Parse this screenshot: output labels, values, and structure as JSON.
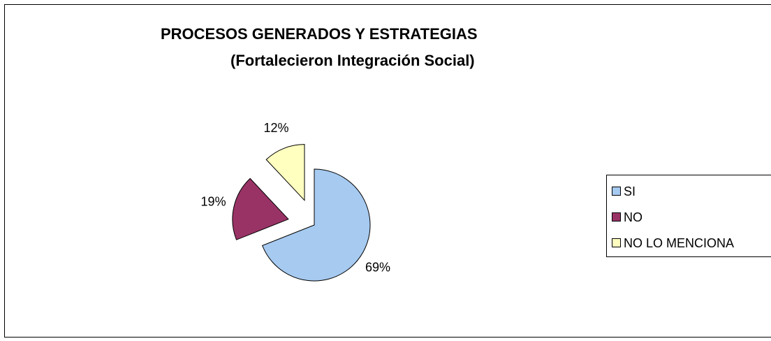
{
  "chart_data": {
    "type": "pie",
    "title": "PROCESOS  GENERADOS Y ESTRATEGIAS",
    "subtitle": "(Fortalecieron Integración Social)",
    "categories": [
      "SI",
      "NO",
      "NO LO MENCIONA"
    ],
    "values": [
      69,
      19,
      12
    ],
    "value_labels": [
      "69%",
      "19%",
      "12%"
    ],
    "colors": [
      "#a6caf0",
      "#993366",
      "#ffffc0"
    ],
    "legend": "right"
  }
}
